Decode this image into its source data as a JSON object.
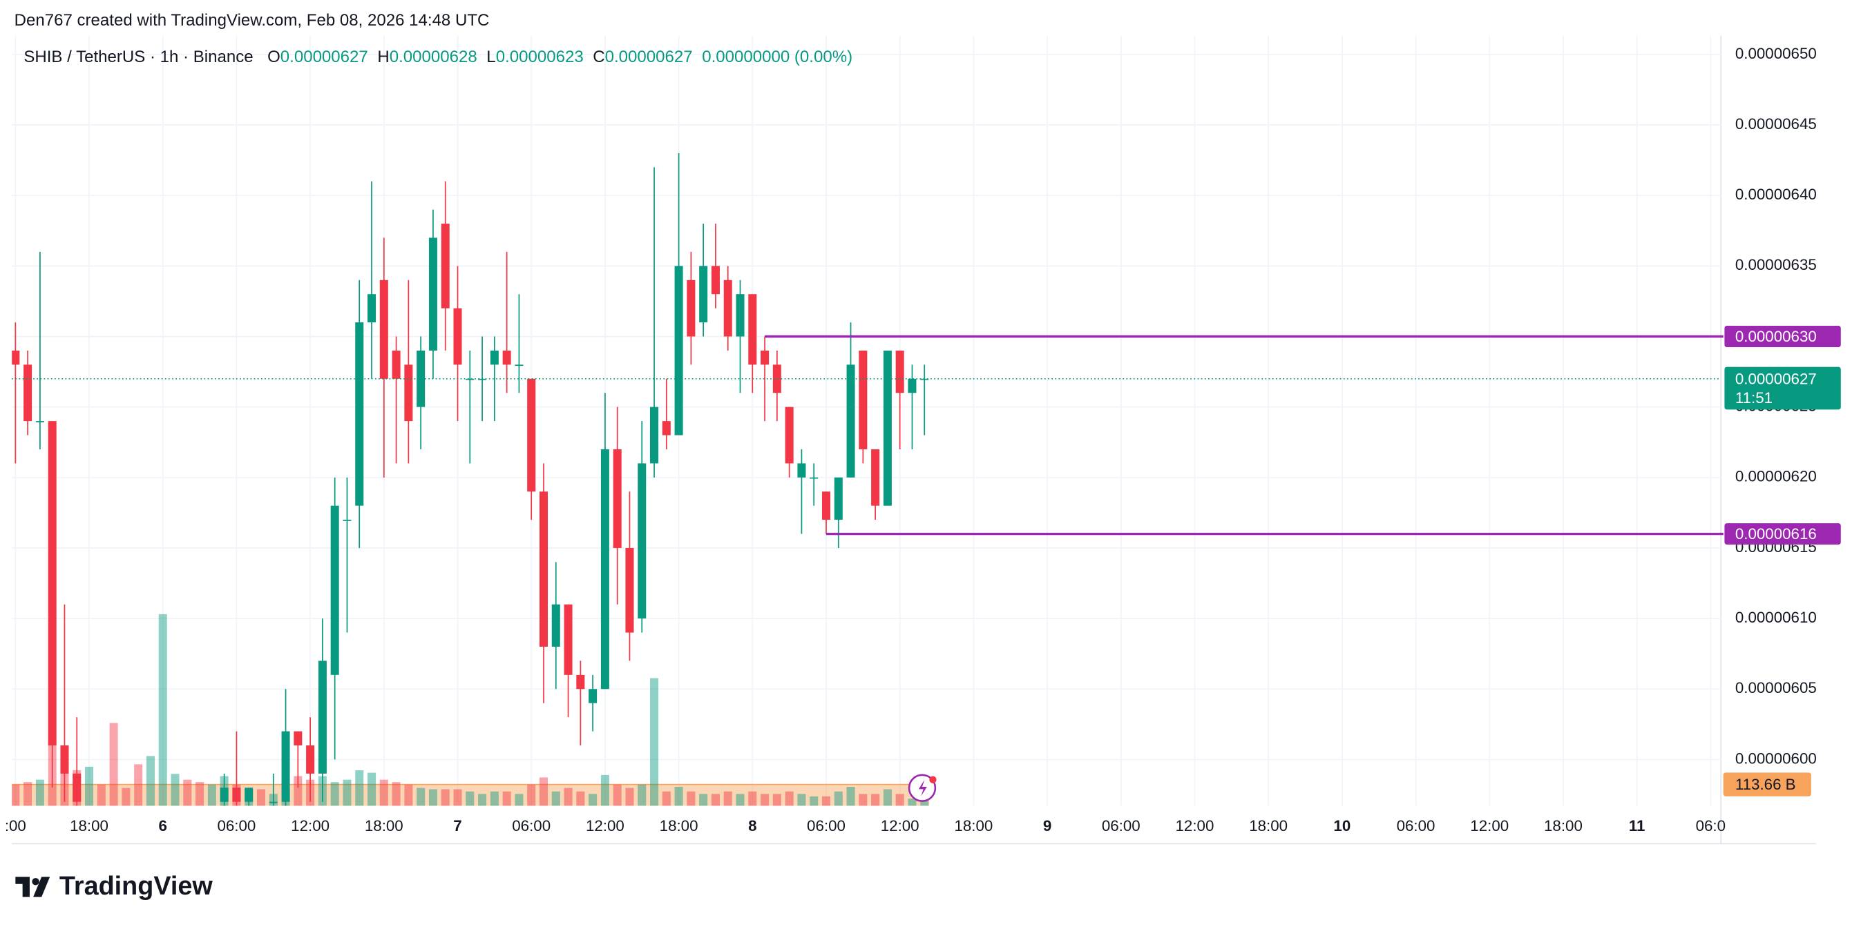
{
  "author_line": "Den767 created with TradingView.com, Feb 08, 2026 14:48 UTC",
  "brand": "TradingView",
  "chart_data": {
    "type": "candlestick",
    "header": {
      "symbol": "SHIB / TetherUS · 1h · Binance",
      "o_label": "O",
      "o": "0.00000627",
      "h_label": "H",
      "h": "0.00000628",
      "l_label": "L",
      "l": "0.00000623",
      "c_label": "C",
      "c": "0.00000627",
      "change": "0.00000000 (0.00%)"
    },
    "up_color": "#089981",
    "down_color": "#f23645",
    "xlim": [
      -0.29,
      138.84
    ],
    "ylim": [
      5.9672e-06,
      6.5134e-06
    ],
    "xticks": [
      {
        "value": 0,
        "label": ":00"
      },
      {
        "value": 6,
        "label": "18:00"
      },
      {
        "value": 12,
        "label": "6"
      },
      {
        "value": 18,
        "label": "06:00"
      },
      {
        "value": 24,
        "label": "12:00"
      },
      {
        "value": 30,
        "label": "18:00"
      },
      {
        "value": 36,
        "label": "7"
      },
      {
        "value": 42,
        "label": "06:00"
      },
      {
        "value": 48,
        "label": "12:00"
      },
      {
        "value": 54,
        "label": "18:00"
      },
      {
        "value": 60,
        "label": "8"
      },
      {
        "value": 66,
        "label": "06:00"
      },
      {
        "value": 72,
        "label": "12:00"
      },
      {
        "value": 78,
        "label": "18:00"
      },
      {
        "value": 84,
        "label": "9"
      },
      {
        "value": 90,
        "label": "06:00"
      },
      {
        "value": 96,
        "label": "12:00"
      },
      {
        "value": 102,
        "label": "18:00"
      },
      {
        "value": 108,
        "label": "10"
      },
      {
        "value": 114,
        "label": "06:00"
      },
      {
        "value": 120,
        "label": "12:00"
      },
      {
        "value": 126,
        "label": "18:00"
      },
      {
        "value": 132,
        "label": "11"
      },
      {
        "value": 138,
        "label": "06:0"
      }
    ],
    "yticks": [
      {
        "value": 6.5e-06,
        "label": "0.00000650"
      },
      {
        "value": 6.45e-06,
        "label": "0.00000645"
      },
      {
        "value": 6.4e-06,
        "label": "0.00000640"
      },
      {
        "value": 6.35e-06,
        "label": "0.00000635"
      },
      {
        "value": 6.3e-06,
        "label": "0.00000630"
      },
      {
        "value": 6.25e-06,
        "label": "0.00000625"
      },
      {
        "value": 6.2e-06,
        "label": "0.00000620"
      },
      {
        "value": 6.15e-06,
        "label": "0.00000615"
      },
      {
        "value": 6.1e-06,
        "label": "0.00000610"
      },
      {
        "value": 6.05e-06,
        "label": "0.00000605"
      },
      {
        "value": 6e-06,
        "label": "0.00000600"
      }
    ],
    "grid": true,
    "open": [
      6.29e-06,
      6.28e-06,
      6.24e-06,
      6.24e-06,
      6.01e-06,
      5.99e-06,
      null,
      null,
      null,
      null,
      null,
      null,
      null,
      null,
      null,
      null,
      null,
      5.97e-06,
      5.98e-06,
      5.97e-06,
      null,
      5.97e-06,
      5.97e-06,
      6.02e-06,
      6.01e-06,
      5.99e-06,
      6.06e-06,
      6.17e-06,
      6.18e-06,
      6.31e-06,
      6.34e-06,
      6.29e-06,
      6.28e-06,
      6.25e-06,
      6.29e-06,
      6.38e-06,
      6.32e-06,
      6.27e-06,
      6.27e-06,
      6.28e-06,
      6.29e-06,
      6.28e-06,
      6.27e-06,
      6.19e-06,
      6.08e-06,
      6.11e-06,
      6.06e-06,
      6.04e-06,
      6.05e-06,
      6.22e-06,
      6.15e-06,
      6.1e-06,
      6.21e-06,
      6.24e-06,
      6.23e-06,
      6.34e-06,
      6.31e-06,
      6.35e-06,
      6.34e-06,
      6.3e-06,
      6.33e-06,
      6.29e-06,
      6.28e-06,
      6.25e-06,
      6.2e-06,
      6.2e-06,
      6.19e-06,
      6.17e-06,
      6.2e-06,
      6.29e-06,
      6.22e-06,
      6.18e-06,
      6.29e-06,
      6.26e-06,
      6.27e-06
    ],
    "high": [
      6.31e-06,
      6.29e-06,
      6.36e-06,
      6.24e-06,
      6.11e-06,
      6.03e-06,
      null,
      null,
      null,
      null,
      null,
      null,
      null,
      null,
      null,
      null,
      null,
      5.99e-06,
      6.02e-06,
      5.98e-06,
      null,
      5.99e-06,
      6.05e-06,
      6.02e-06,
      6.03e-06,
      6.1e-06,
      6.2e-06,
      6.2e-06,
      6.34e-06,
      6.41e-06,
      6.37e-06,
      6.3e-06,
      6.34e-06,
      6.3e-06,
      6.39e-06,
      6.41e-06,
      6.35e-06,
      6.29e-06,
      6.3e-06,
      6.3e-06,
      6.36e-06,
      6.33e-06,
      6.27e-06,
      6.21e-06,
      6.14e-06,
      6.11e-06,
      6.07e-06,
      6.06e-06,
      6.26e-06,
      6.25e-06,
      6.19e-06,
      6.24e-06,
      6.42e-06,
      6.27e-06,
      6.43e-06,
      6.36e-06,
      6.38e-06,
      6.38e-06,
      6.35e-06,
      6.34e-06,
      6.33e-06,
      6.3e-06,
      6.29e-06,
      6.25e-06,
      6.22e-06,
      6.21e-06,
      6.19e-06,
      6.2e-06,
      6.31e-06,
      6.29e-06,
      6.22e-06,
      6.29e-06,
      6.29e-06,
      6.28e-06,
      6.28e-06
    ],
    "low": [
      6.21e-06,
      6.23e-06,
      6.22e-06,
      5.98e-06,
      5.97e-06,
      5.96e-06,
      null,
      null,
      null,
      null,
      null,
      null,
      null,
      null,
      null,
      null,
      null,
      5.96e-06,
      5.96e-06,
      5.96e-06,
      null,
      5.96e-06,
      5.96e-06,
      5.98e-06,
      5.97e-06,
      5.97e-06,
      6e-06,
      6.09e-06,
      6.15e-06,
      6.27e-06,
      6.2e-06,
      6.21e-06,
      6.21e-06,
      6.22e-06,
      6.27e-06,
      6.29e-06,
      6.24e-06,
      6.21e-06,
      6.24e-06,
      6.24e-06,
      6.26e-06,
      6.26e-06,
      6.17e-06,
      6.04e-06,
      6.05e-06,
      6.03e-06,
      6.01e-06,
      6.02e-06,
      6.05e-06,
      6.11e-06,
      6.07e-06,
      6.09e-06,
      6.2e-06,
      6.22e-06,
      6.23e-06,
      6.28e-06,
      6.3e-06,
      6.32e-06,
      6.29e-06,
      6.26e-06,
      6.26e-06,
      6.24e-06,
      6.24e-06,
      6.2e-06,
      6.16e-06,
      6.18e-06,
      6.16e-06,
      6.15e-06,
      6.2e-06,
      6.21e-06,
      6.17e-06,
      6.18e-06,
      6.22e-06,
      6.22e-06,
      6.23e-06
    ],
    "close": [
      6.28e-06,
      6.24e-06,
      6.24e-06,
      6.01e-06,
      5.99e-06,
      5.97e-06,
      null,
      null,
      null,
      null,
      null,
      null,
      null,
      null,
      null,
      null,
      null,
      5.98e-06,
      5.97e-06,
      5.98e-06,
      null,
      5.97e-06,
      6.02e-06,
      6.01e-06,
      5.99e-06,
      6.07e-06,
      6.18e-06,
      6.17e-06,
      6.31e-06,
      6.33e-06,
      6.27e-06,
      6.27e-06,
      6.24e-06,
      6.29e-06,
      6.37e-06,
      6.32e-06,
      6.28e-06,
      6.27e-06,
      6.27e-06,
      6.29e-06,
      6.28e-06,
      6.28e-06,
      6.19e-06,
      6.08e-06,
      6.11e-06,
      6.06e-06,
      6.05e-06,
      6.05e-06,
      6.22e-06,
      6.15e-06,
      6.09e-06,
      6.21e-06,
      6.25e-06,
      6.23e-06,
      6.35e-06,
      6.3e-06,
      6.35e-06,
      6.33e-06,
      6.3e-06,
      6.33e-06,
      6.28e-06,
      6.28e-06,
      6.26e-06,
      6.21e-06,
      6.21e-06,
      6.2e-06,
      6.17e-06,
      6.2e-06,
      6.28e-06,
      6.22e-06,
      6.18e-06,
      6.29e-06,
      6.26e-06,
      6.27e-06,
      6.27e-06
    ],
    "volume": [
      113,
      126,
      139,
      347,
      315,
      189,
      208,
      113,
      441,
      95,
      221,
      265,
      1021,
      170,
      139,
      126,
      113,
      158,
      113,
      76,
      88,
      63,
      95,
      158,
      139,
      158,
      126,
      139,
      189,
      176,
      139,
      126,
      113,
      95,
      88,
      88,
      88,
      76,
      63,
      76,
      76,
      63,
      113,
      151,
      76,
      95,
      76,
      63,
      164,
      113,
      95,
      113,
      680,
      76,
      101,
      76,
      63,
      63,
      76,
      63,
      76,
      63,
      63,
      76,
      63,
      50,
      50,
      76,
      101,
      63,
      63,
      88,
      63,
      38,
      25
    ],
    "volume_direction": [
      "down",
      "down",
      "up",
      "down",
      "down",
      "down",
      "up",
      "down",
      "down",
      "down",
      "down",
      "up",
      "up",
      "up",
      "down",
      "down",
      "up",
      "up",
      "down",
      "up",
      "down",
      "up",
      "up",
      "down",
      "down",
      "up",
      "up",
      "up",
      "up",
      "up",
      "down",
      "down",
      "down",
      "up",
      "up",
      "down",
      "down",
      "up",
      "up",
      "up",
      "down",
      "up",
      "down",
      "down",
      "up",
      "down",
      "down",
      "up",
      "up",
      "down",
      "down",
      "up",
      "up",
      "down",
      "up",
      "down",
      "up",
      "down",
      "down",
      "up",
      "down",
      "down",
      "down",
      "down",
      "up",
      "up",
      "down",
      "up",
      "up",
      "down",
      "down",
      "up",
      "down",
      "up",
      "up"
    ],
    "volume_ma": 113.66,
    "volume_ma_label": "113.66 B",
    "volume_ma_color": "#f7a35c",
    "levels": [
      {
        "value": 6.3e-06,
        "label": "0.00000630",
        "start": 61
      },
      {
        "value": 6.16e-06,
        "label": "0.00000616",
        "start": 66
      }
    ],
    "level_color": "#9c27b0",
    "last_price": 6.27e-06,
    "last_price_label": "0.00000627",
    "countdown": "11:51"
  }
}
